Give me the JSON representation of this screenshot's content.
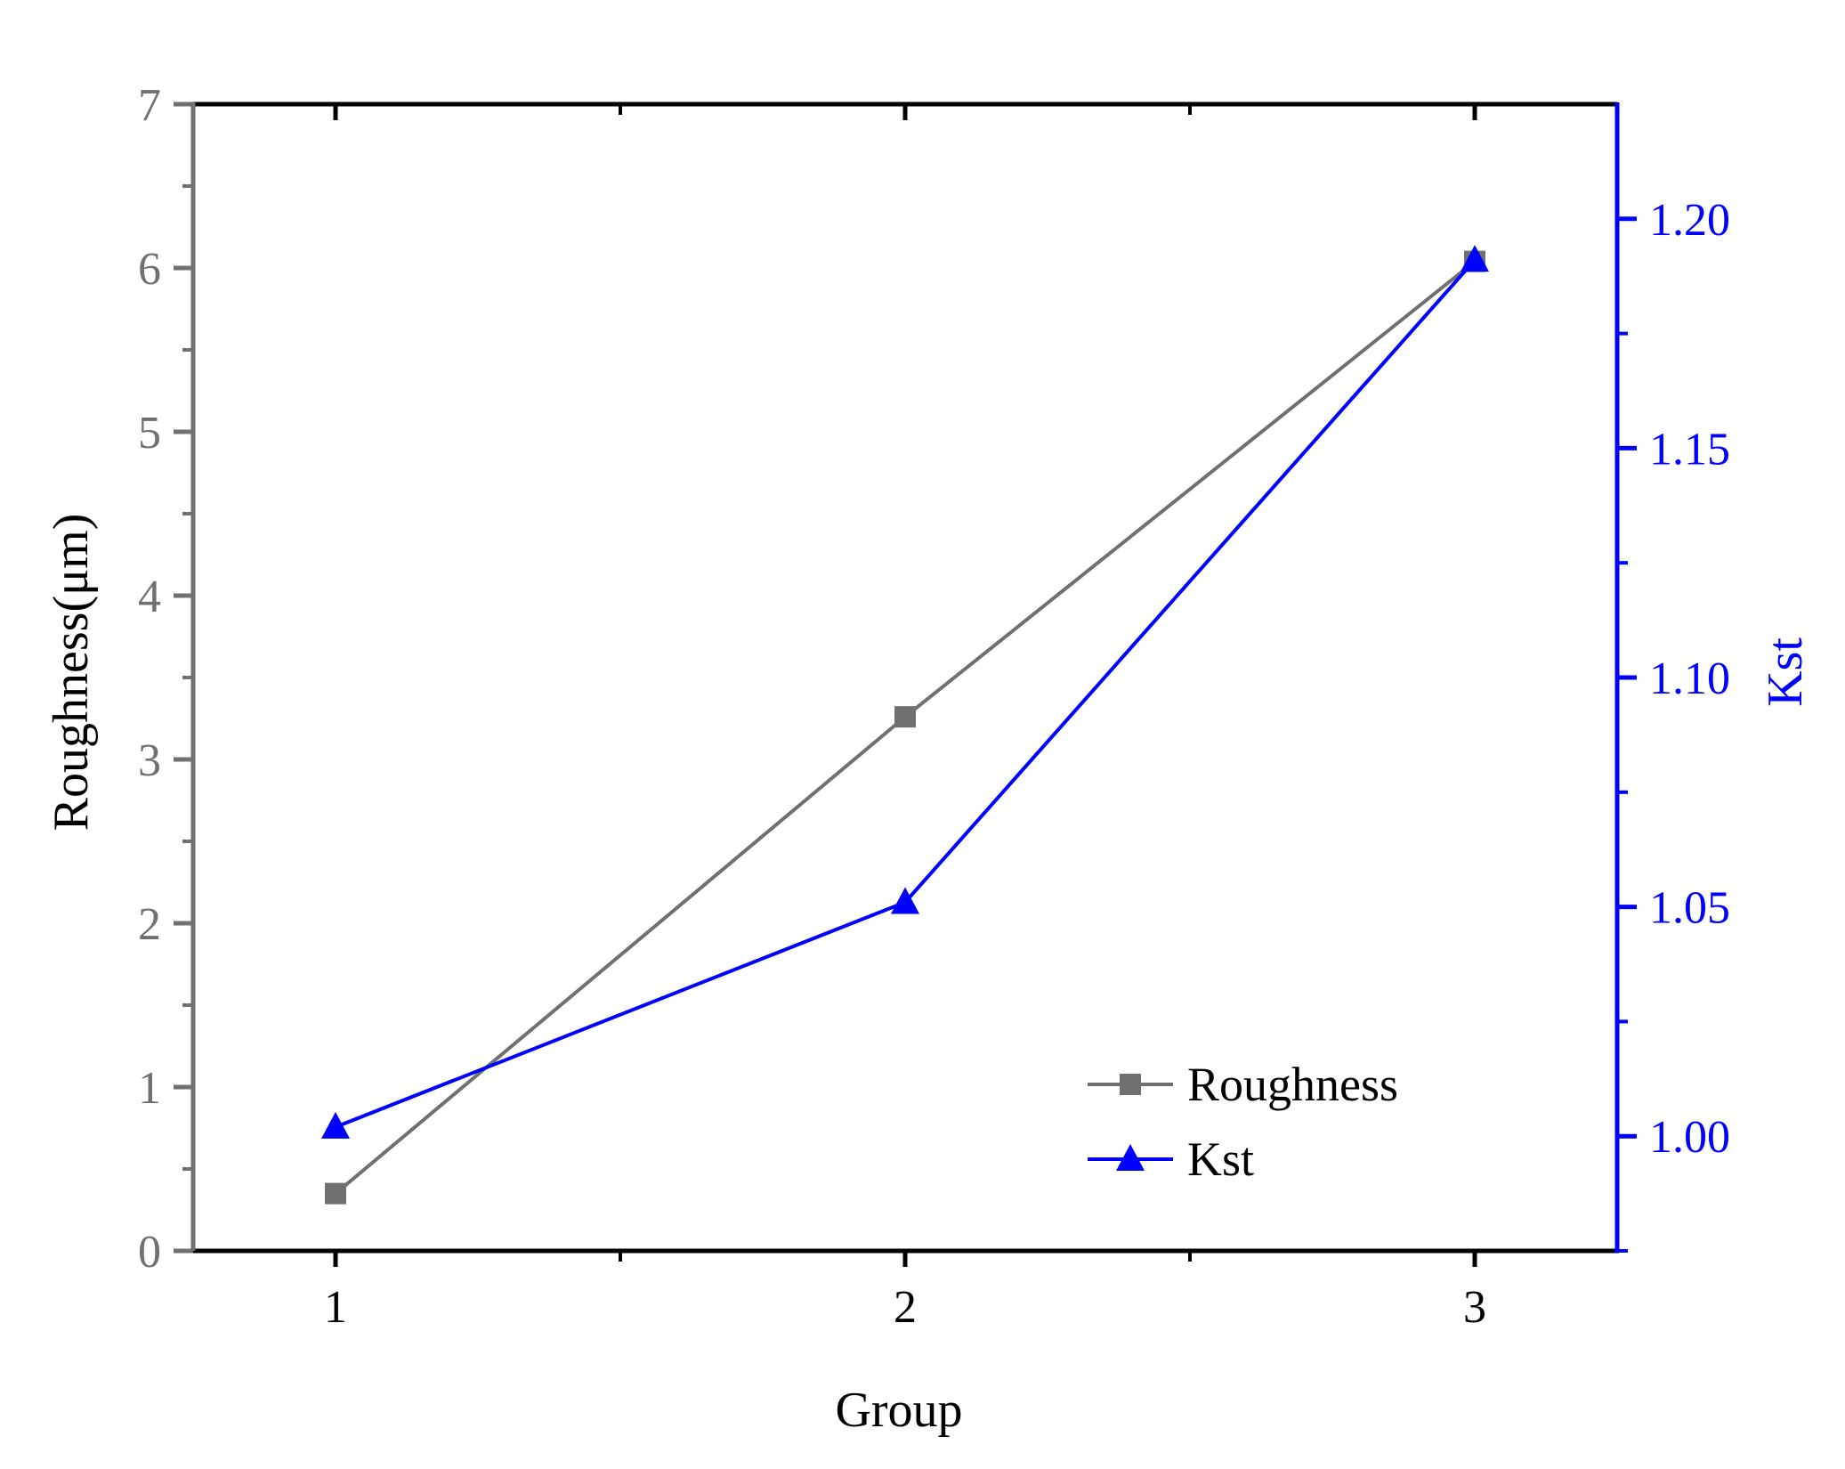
{
  "chart_data": {
    "type": "line",
    "title": "",
    "xlabel": "Group",
    "ylabel": "Roughness(μm)",
    "y2label": "Kst",
    "x": [
      1,
      2,
      3
    ],
    "x_ticks": [
      "1",
      "2",
      "3"
    ],
    "xlim": [
      0.75,
      3.25
    ],
    "ylim": [
      0,
      7
    ],
    "y_ticks": [
      "0",
      "1",
      "2",
      "3",
      "4",
      "5",
      "6",
      "7"
    ],
    "y2lim": [
      0.975,
      1.225
    ],
    "y2_ticks": [
      "1.00",
      "1.05",
      "1.10",
      "1.15",
      "1.20"
    ],
    "grid": false,
    "legend_position": "bottom-right",
    "series": [
      {
        "name": "Roughness",
        "axis": "left",
        "marker": "square",
        "color": "#707070",
        "values": [
          0.35,
          3.26,
          6.04
        ]
      },
      {
        "name": "Kst",
        "axis": "right",
        "marker": "triangle",
        "color": "#0000ff",
        "values": [
          1.002,
          1.051,
          1.191
        ]
      }
    ],
    "colors": {
      "left_axis": "#707070",
      "right_axis": "#0000ff",
      "frame": "#000000"
    }
  }
}
